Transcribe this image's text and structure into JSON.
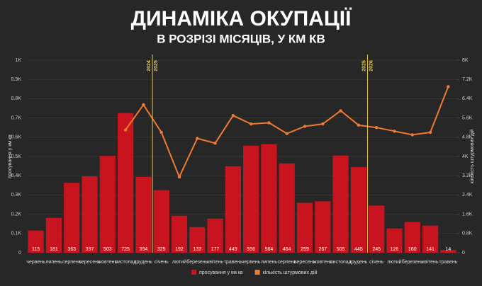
{
  "chart_data": {
    "type": "bar",
    "title": "ДИНАМІКА ОКУПАЦІЇ",
    "subtitle": "В РОЗРІЗІ МІСЯЦІВ, У КМ КВ",
    "ylabel": "просування у км кв",
    "y2label": "кількість штурмових дій",
    "categories": [
      "червень",
      "липень",
      "серпень",
      "вересень",
      "жовтень",
      "листопад",
      "грудень",
      "січень",
      "лютий",
      "березень",
      "квітень",
      "травень",
      "червень",
      "липень",
      "серпень",
      "вересень",
      "жовтень",
      "листопад",
      "грудень",
      "січень",
      "лютий",
      "березень",
      "квітень",
      "травень"
    ],
    "series": [
      {
        "name": "просування у км кв",
        "color": "#c8141e",
        "type": "bar",
        "values": [
          115,
          181,
          363,
          397,
          503,
          725,
          394,
          325,
          192,
          133,
          177,
          449,
          556,
          564,
          464,
          259,
          267,
          505,
          445,
          245,
          126,
          160,
          141,
          14
        ]
      },
      {
        "name": "кількість штурмових дій",
        "color": "#f07a30",
        "type": "line",
        "axis": "y2",
        "values": [
          null,
          null,
          null,
          null,
          null,
          5100,
          6150,
          5000,
          3150,
          4750,
          4550,
          5700,
          5350,
          5400,
          4950,
          5250,
          5350,
          5900,
          5300,
          5200,
          5050,
          4900,
          5000,
          6900
        ]
      }
    ],
    "ylim": [
      0,
      1000
    ],
    "yticks": [
      0,
      {
        "value": 100,
        "label": "0.1K"
      },
      {
        "value": 200,
        "label": "0.2K"
      },
      {
        "value": 300,
        "label": "0.3K"
      },
      {
        "value": 400,
        "label": "0.4K"
      },
      {
        "value": 500,
        "label": "0.5K"
      },
      {
        "value": 600,
        "label": "0.6K"
      },
      {
        "value": 700,
        "label": "0.7K"
      },
      {
        "value": 800,
        "label": "0.8K"
      },
      {
        "value": 900,
        "label": "0.9K"
      },
      {
        "value": 1000,
        "label": "1K"
      }
    ],
    "y2lim": [
      0,
      8000
    ],
    "y2ticks": [
      0,
      {
        "value": 800,
        "label": "0.8K"
      },
      {
        "value": 1600,
        "label": "1.6K"
      },
      {
        "value": 2400,
        "label": "2.4K"
      },
      {
        "value": 3200,
        "label": "3.2K"
      },
      {
        "value": 4000,
        "label": "4K"
      },
      {
        "value": 4800,
        "label": "4.8K"
      },
      {
        "value": 5600,
        "label": "5.6K"
      },
      {
        "value": 6400,
        "label": "6.4K"
      },
      {
        "value": 7200,
        "label": "7.2K"
      },
      {
        "value": 8000,
        "label": "8K"
      }
    ],
    "annotations": [
      [
        "2024",
        "2025"
      ],
      [
        "2025",
        "2026"
      ]
    ],
    "grid": true
  }
}
